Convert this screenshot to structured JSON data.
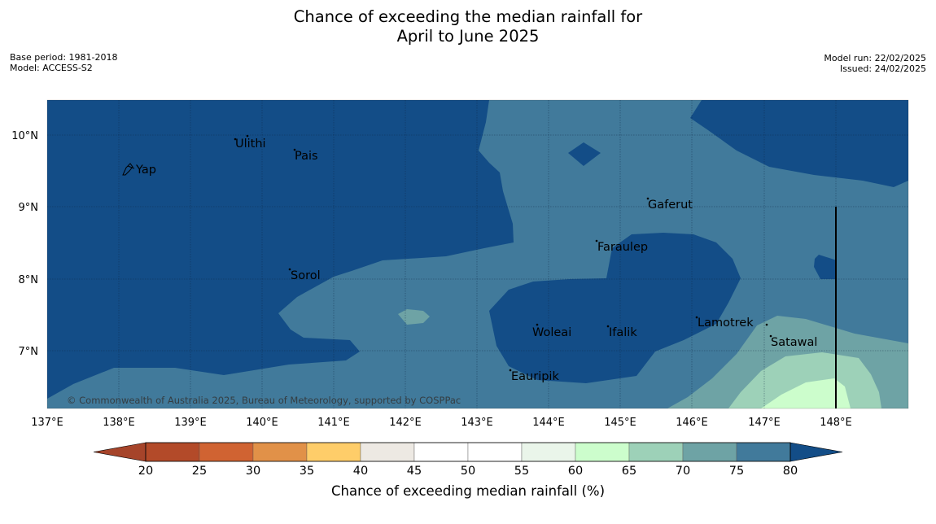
{
  "title": {
    "line1": "Chance of exceeding the median rainfall for",
    "line2": "April to June 2025"
  },
  "meta": {
    "base_period": "Base period: 1981-2018",
    "model": "Model: ACCESS-S2",
    "model_run": "Model run: 22/02/2025",
    "issued": "Issued: 24/02/2025"
  },
  "map": {
    "lat_labels": [
      "10°N",
      "9°N",
      "8°N",
      "7°N"
    ],
    "lon_labels": [
      "137°E",
      "138°E",
      "139°E",
      "140°E",
      "141°E",
      "142°E",
      "143°E",
      "144°E",
      "145°E",
      "146°E",
      "147°E",
      "148°E"
    ],
    "places": [
      "Yap",
      "Ulithi",
      "Pais",
      "Gaferut",
      "Faraulep",
      "Sorol",
      "Woleai",
      "Ifalik",
      "Lamotrek",
      "Satawal",
      "Eauripik"
    ],
    "copyright": "© Commonwealth of Australia 2025, Bureau of Meteorology, supported by COSPPac",
    "colors": {
      "gt80": "#134d87",
      "c75_80": "#417a9b",
      "c70_75": "#6ea3a5",
      "c65_70": "#9dd1b8",
      "c60_65": "#ccfdcc"
    }
  },
  "legend": {
    "ticks": [
      "20",
      "25",
      "30",
      "35",
      "40",
      "45",
      "50",
      "55",
      "60",
      "65",
      "70",
      "75",
      "80"
    ],
    "colors": [
      "#a6442a",
      "#b34a29",
      "#d06332",
      "#e19148",
      "#fecd69",
      "#ede9e3",
      "#ffffff",
      "#ffffff",
      "#eaf5ea",
      "#ccfdcc",
      "#9dd1b8",
      "#6ea3a5",
      "#417a9b",
      "#134d87"
    ],
    "label": "Chance of exceeding median rainfall (%)"
  }
}
